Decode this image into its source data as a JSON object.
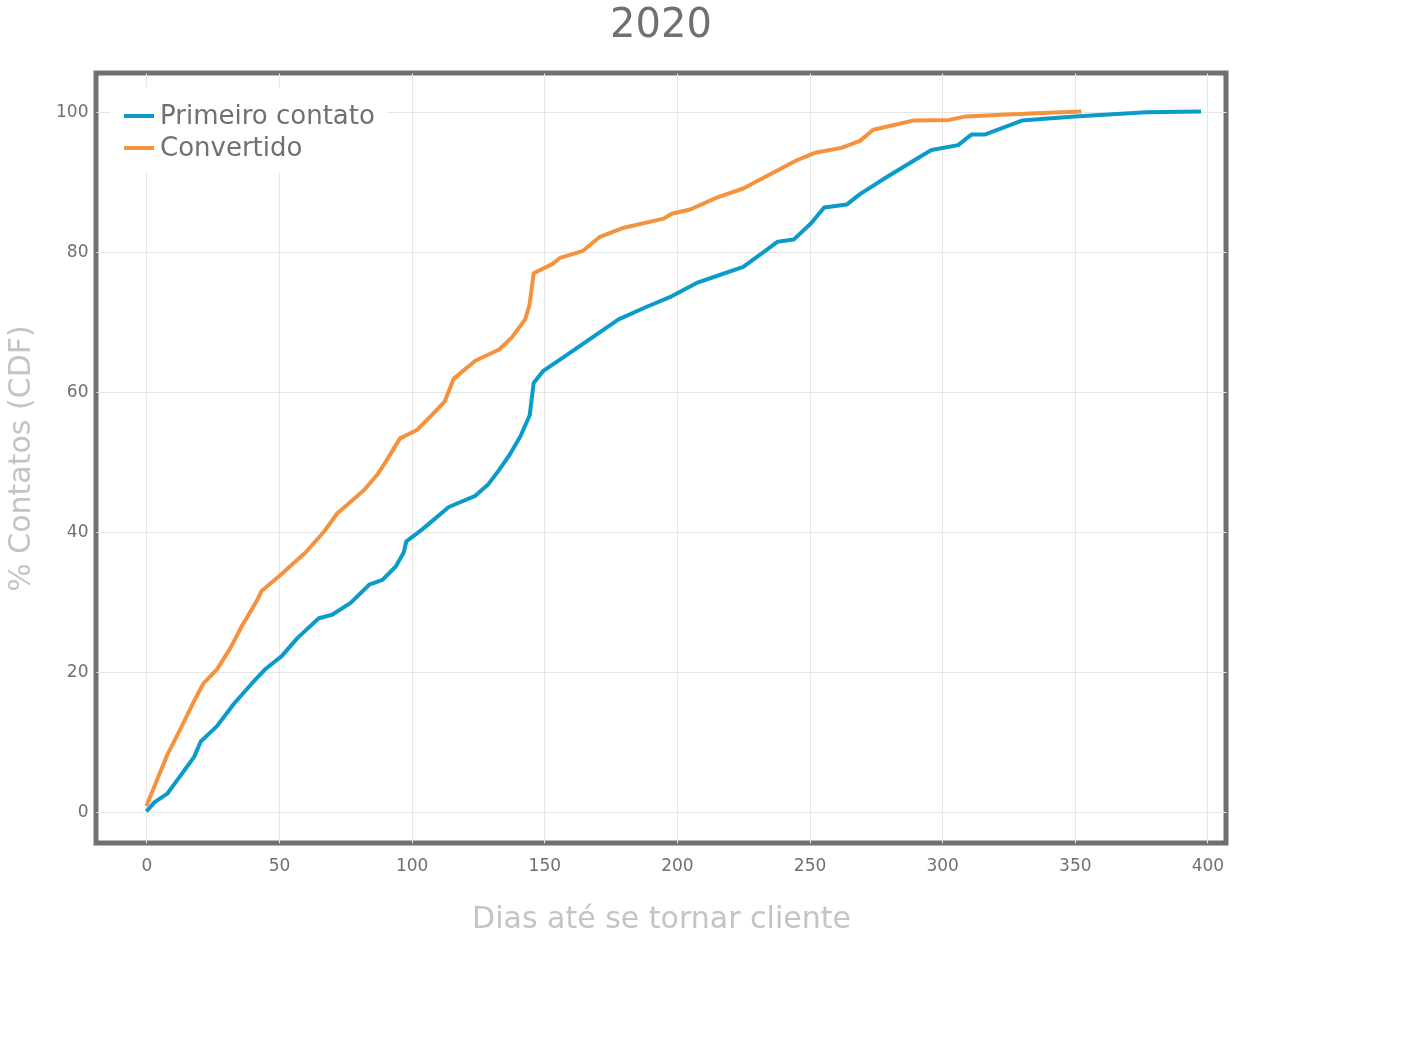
{
  "chart_data": {
    "type": "line",
    "title": "2020",
    "xlabel": "Dias até se tornar cliente",
    "ylabel": "% Contatos (CDF)",
    "xlim": [
      -19,
      407
    ],
    "ylim": [
      -4.5,
      105.5
    ],
    "xticks": [
      0,
      50,
      100,
      150,
      200,
      250,
      300,
      350,
      400
    ],
    "yticks": [
      0,
      20,
      40,
      60,
      80,
      100
    ],
    "grid": true,
    "legend": "top left",
    "marker": "none",
    "line_style": "solid",
    "series": [
      {
        "name": "Primeiro contato",
        "color": "#0a9bcb",
        "x": [
          0,
          3,
          8,
          13,
          18,
          20.5,
          26.6,
          33,
          40,
          45,
          51,
          57,
          65,
          70,
          77,
          84,
          89,
          94,
          97,
          98,
          104,
          114,
          124,
          129,
          133,
          137,
          141,
          144.5,
          146,
          149.5,
          158,
          168,
          178,
          188,
          198,
          208,
          215,
          225,
          238,
          244,
          250.5,
          255.5,
          264,
          269,
          279,
          292,
          296,
          306,
          311,
          316,
          330,
          350,
          377,
          397.6
        ],
        "values": [
          0,
          1.3,
          2.6,
          5.2,
          7.8,
          10,
          12.2,
          15.4,
          18.4,
          20.4,
          22.2,
          24.8,
          27.6,
          28.1,
          29.8,
          32.4,
          33.1,
          35,
          37,
          38.6,
          40.3,
          43.5,
          45.1,
          46.8,
          48.8,
          51,
          53.6,
          56.6,
          61.2,
          62.9,
          65.1,
          67.7,
          70.3,
          72,
          73.6,
          75.6,
          76.5,
          77.8,
          81.4,
          81.7,
          84,
          86.3,
          86.7,
          88.2,
          90.6,
          93.6,
          94.5,
          95.2,
          96.7,
          96.7,
          98.7,
          99.3,
          99.9,
          100
        ]
      },
      {
        "name": "Convertido",
        "color": "#f5923e",
        "x": [
          0,
          8,
          13,
          18,
          21.5,
          26.6,
          31.6,
          36,
          41.8,
          43.4,
          50,
          60,
          67,
          72,
          82,
          87,
          90,
          95.6,
          102,
          107.5,
          112.5,
          115.8,
          124,
          133,
          137.7,
          142.8,
          144.4,
          146,
          153,
          156,
          164.6,
          171,
          180,
          195,
          198,
          205,
          215,
          225,
          235,
          245,
          252,
          262,
          269,
          274,
          281,
          289,
          302.7,
          309,
          333,
          352.5
        ],
        "values": [
          0.8,
          8.2,
          11.9,
          15.8,
          18.3,
          20.3,
          23.3,
          26.5,
          30.2,
          31.5,
          33.6,
          37,
          40,
          42.6,
          45.9,
          48.1,
          49.8,
          53.3,
          54.5,
          56.6,
          58.6,
          61.8,
          64.4,
          66,
          67.7,
          70.3,
          72.3,
          76.9,
          78.2,
          79.1,
          80.1,
          82.1,
          83.4,
          84.7,
          85.4,
          86,
          87.7,
          89,
          91,
          93,
          94.1,
          94.8,
          95.8,
          97.4,
          98,
          98.7,
          98.8,
          99.3,
          99.7,
          100
        ]
      }
    ]
  }
}
